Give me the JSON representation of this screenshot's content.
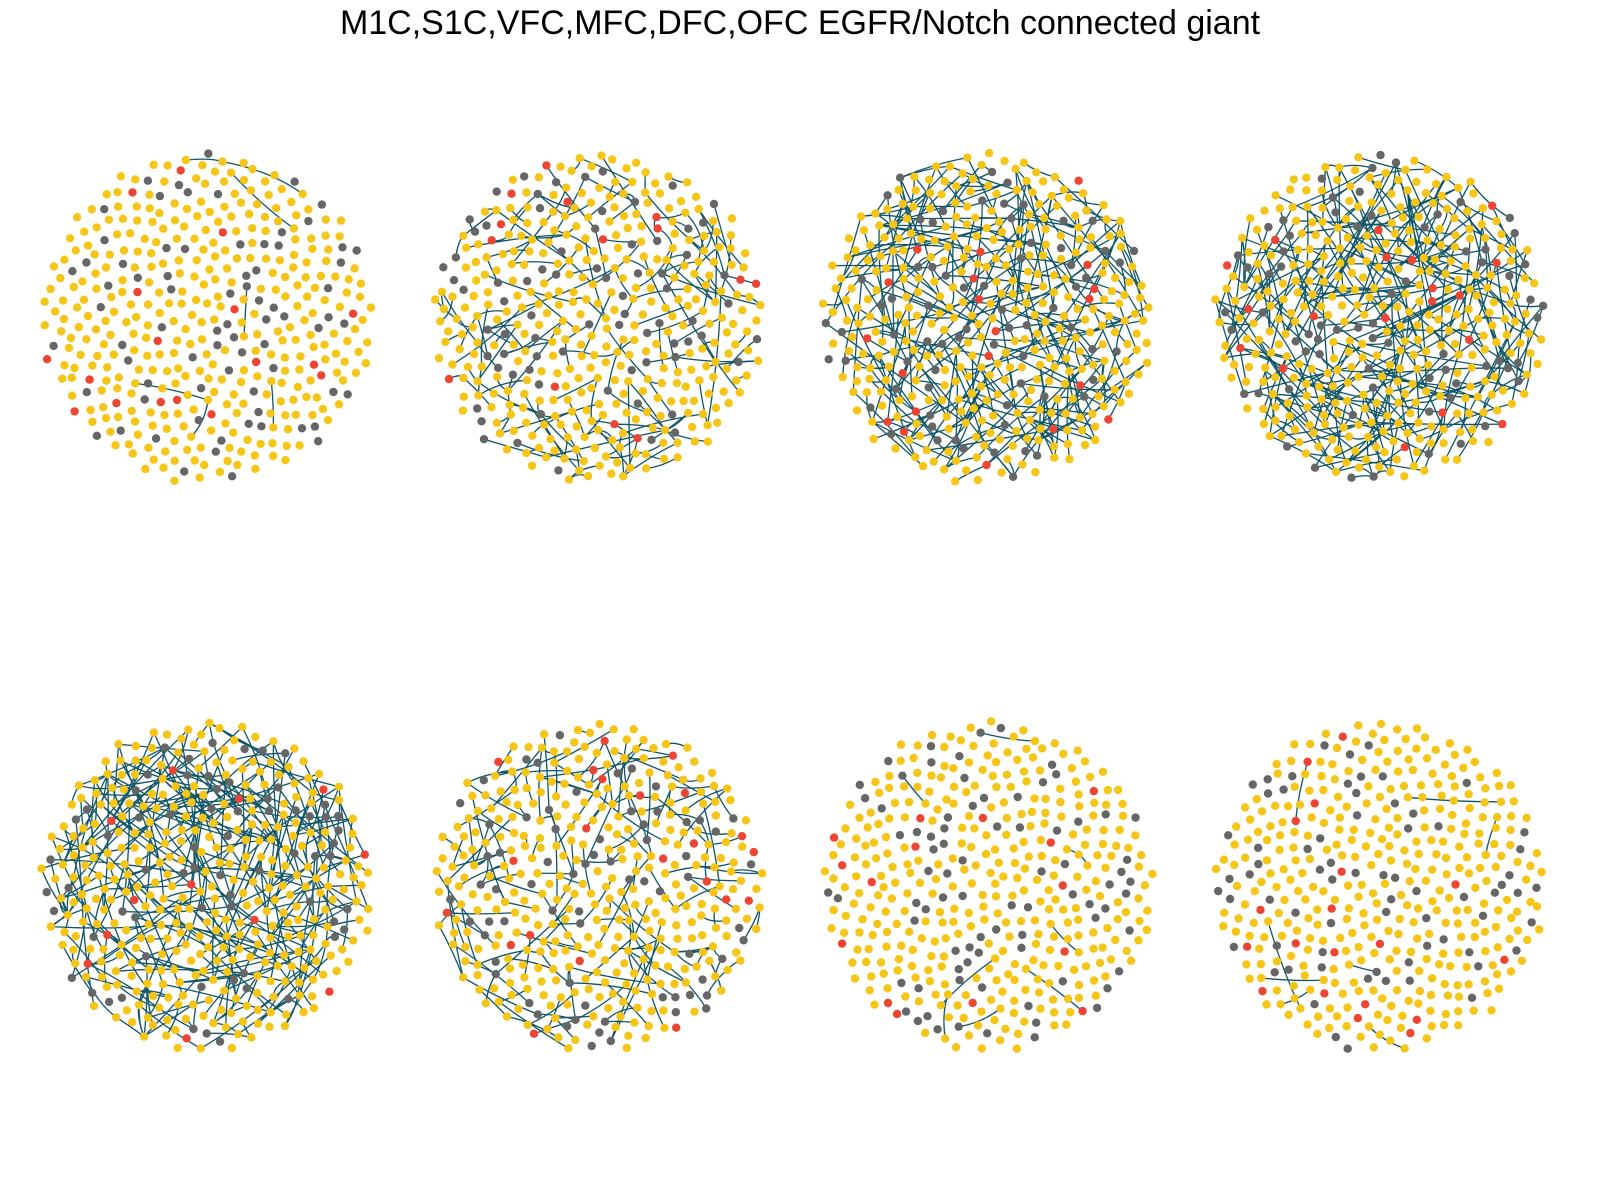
{
  "title": "M1C,S1C,VFC,MFC,DFC,OFC EGFR/Notch connected giant",
  "colors": {
    "major": "#F5C518",
    "minor": "#666666",
    "highlight": "#EE4433",
    "edge": "#0F5566",
    "background": "#FFFFFF"
  },
  "legend": "none",
  "grid": "off",
  "layout": "2 rows x 4 columns, each panel a circular network layout",
  "panels": [
    {
      "row": 1,
      "col": 1,
      "style": "mostly unconnected nodes, few links"
    },
    {
      "row": 1,
      "col": 2,
      "style": "short chains and small trees"
    },
    {
      "row": 1,
      "col": 3,
      "style": "one large connected component"
    },
    {
      "row": 1,
      "col": 4,
      "style": "large connected component with long arcs"
    },
    {
      "row": 2,
      "col": 1,
      "style": "large connected component with long arcs"
    },
    {
      "row": 2,
      "col": 2,
      "style": "short chains and small trees"
    },
    {
      "row": 2,
      "col": 3,
      "style": "mostly unconnected nodes, few links"
    },
    {
      "row": 2,
      "col": 4,
      "style": "mostly unconnected nodes, few links"
    }
  ]
}
